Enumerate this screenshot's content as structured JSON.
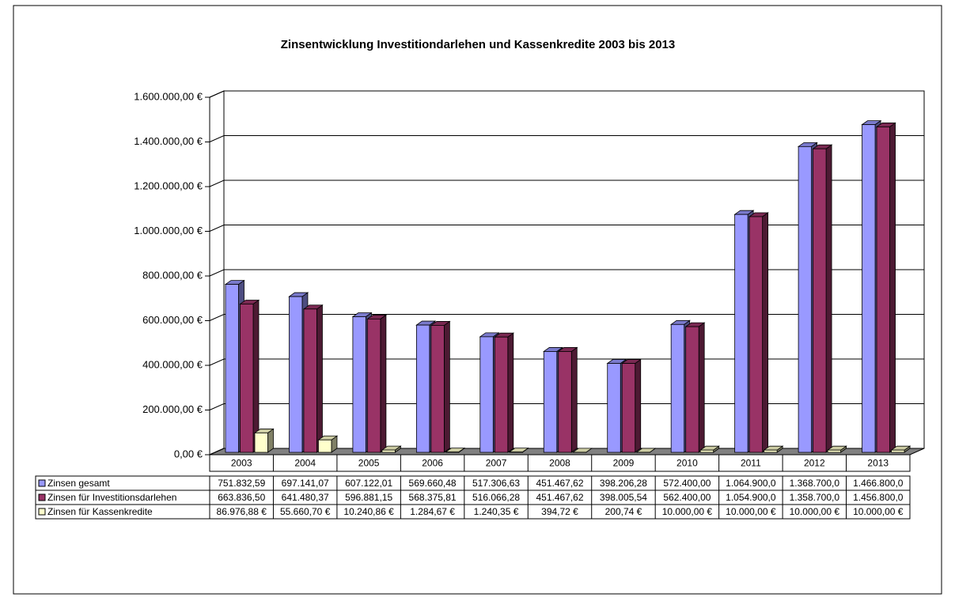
{
  "chart_data": {
    "type": "bar3d",
    "title": "Zinsentwicklung Investitiondarlehen und Kassenkredite 2003 bis 2013",
    "categories": [
      "2003",
      "2004",
      "2005",
      "2006",
      "2007",
      "2008",
      "2009",
      "2010",
      "2011",
      "2012",
      "2013"
    ],
    "series": [
      {
        "name": "Zinsen gesamt",
        "color": "#9999ff",
        "values": [
          751832.59,
          697141.07,
          607122.01,
          569660.48,
          517306.63,
          451467.62,
          398206.28,
          572400.0,
          1064900.0,
          1368700.0,
          1466800.0
        ],
        "value_labels": [
          "751.832,59",
          "697.141,07",
          "607.122,01",
          "569.660,48",
          "517.306,63",
          "451.467,62",
          "398.206,28",
          "572.400,00",
          "1.064.900,0",
          "1.368.700,0",
          "1.466.800,0"
        ]
      },
      {
        "name": "Zinsen für Investitionsdarlehen",
        "color": "#993366",
        "values": [
          663836.5,
          641480.37,
          596881.15,
          568375.81,
          516066.28,
          451467.62,
          398005.54,
          562400.0,
          1054900.0,
          1358700.0,
          1456800.0
        ],
        "value_labels": [
          "663.836,50",
          "641.480,37",
          "596.881,15",
          "568.375,81",
          "516.066,28",
          "451.467,62",
          "398.005,54",
          "562.400,00",
          "1.054.900,0",
          "1.358.700,0",
          "1.456.800,0"
        ]
      },
      {
        "name": "Zinsen für Kassenkredite",
        "color": "#ffffcc",
        "values": [
          86976.88,
          55660.7,
          10240.86,
          1284.67,
          1240.35,
          394.72,
          200.74,
          10000.0,
          10000.0,
          10000.0,
          10000.0
        ],
        "value_labels": [
          "86.976,88 €",
          "55.660,70 €",
          "10.240,86 €",
          "1.284,67 €",
          "1.240,35 €",
          "394,72 €",
          "200,74 €",
          "10.000,00 €",
          "10.000,00 €",
          "10.000,00 €",
          "10.000,00 €"
        ]
      }
    ],
    "ylim": [
      0,
      1600000
    ],
    "yticks": [
      {
        "value": 0,
        "label": "0,00 €"
      },
      {
        "value": 200000,
        "label": "200.000,00 €"
      },
      {
        "value": 400000,
        "label": "400.000,00 €"
      },
      {
        "value": 600000,
        "label": "600.000,00 €"
      },
      {
        "value": 800000,
        "label": "800.000,00 €"
      },
      {
        "value": 1000000,
        "label": "1.000.000,00 €"
      },
      {
        "value": 1200000,
        "label": "1.200.000,00 €"
      },
      {
        "value": 1400000,
        "label": "1.400.000,00 €"
      },
      {
        "value": 1600000,
        "label": "1.600.000,00 €"
      }
    ],
    "grid": true
  }
}
